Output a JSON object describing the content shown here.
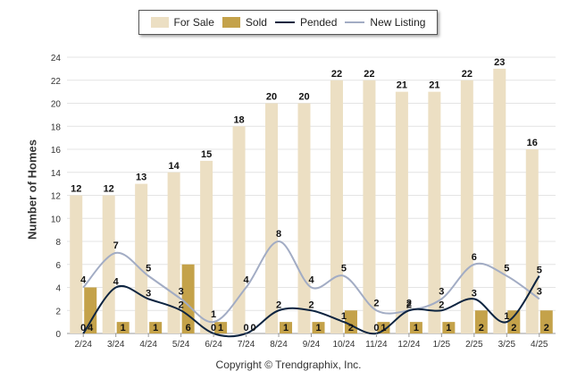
{
  "chart_data": {
    "type": "bar",
    "categories": [
      "2/24",
      "3/24",
      "4/24",
      "5/24",
      "6/24",
      "7/24",
      "8/24",
      "9/24",
      "10/24",
      "11/24",
      "12/24",
      "1/25",
      "2/25",
      "3/25",
      "4/25"
    ],
    "series": [
      {
        "name": "For Sale",
        "kind": "bar",
        "color": "#ecdfc3",
        "values": [
          12,
          12,
          13,
          14,
          15,
          18,
          20,
          20,
          22,
          22,
          21,
          21,
          22,
          23,
          16
        ]
      },
      {
        "name": "Sold",
        "kind": "bar",
        "color": "#c4a24a",
        "values": [
          4,
          1,
          1,
          6,
          1,
          0,
          1,
          1,
          2,
          1,
          1,
          1,
          2,
          2,
          2
        ]
      },
      {
        "name": "Pended",
        "kind": "line",
        "color": "#0d2440",
        "values": [
          0,
          4,
          3,
          2,
          0,
          0,
          2,
          2,
          1,
          0,
          2,
          2,
          3,
          1,
          5
        ]
      },
      {
        "name": "New Listing",
        "kind": "line",
        "color": "#a2acc4",
        "values": [
          4,
          7,
          5,
          3,
          1,
          4,
          8,
          4,
          5,
          2,
          2,
          3,
          6,
          5,
          3
        ]
      }
    ],
    "ylabel": "Number of Homes",
    "ylim": [
      0,
      24
    ],
    "yticks": [
      0,
      2,
      4,
      6,
      8,
      10,
      12,
      14,
      16,
      18,
      20,
      22,
      24
    ],
    "grid": true,
    "legend_position": "top"
  },
  "footer_text": "Copyright © Trendgraphix, Inc."
}
